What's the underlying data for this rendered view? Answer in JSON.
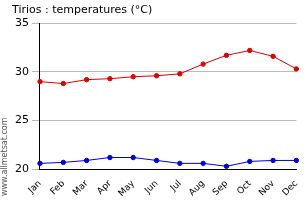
{
  "chart_data": {
    "type": "line",
    "title": "Tirios : temperatures (°C)",
    "annotations": [
      "www.allmetsat.com"
    ],
    "categories": [
      "Jan",
      "Feb",
      "Mar",
      "Apr",
      "May",
      "Jun",
      "Jul",
      "Aug",
      "Sep",
      "Oct",
      "Nov",
      "Dec"
    ],
    "series": [
      {
        "color": "#e00000",
        "marker": "circle",
        "values": [
          29.0,
          28.8,
          29.2,
          29.3,
          29.5,
          29.6,
          29.8,
          30.8,
          31.7,
          32.2,
          31.6,
          30.3
        ]
      },
      {
        "color": "#0000e0",
        "marker": "circle",
        "values": [
          20.6,
          20.7,
          20.9,
          21.2,
          21.2,
          20.9,
          20.6,
          20.6,
          20.3,
          20.8,
          20.9,
          20.9
        ]
      }
    ],
    "ylim": [
      20,
      35
    ],
    "yticks": [
      20,
      25,
      30,
      35
    ],
    "grid": true
  }
}
